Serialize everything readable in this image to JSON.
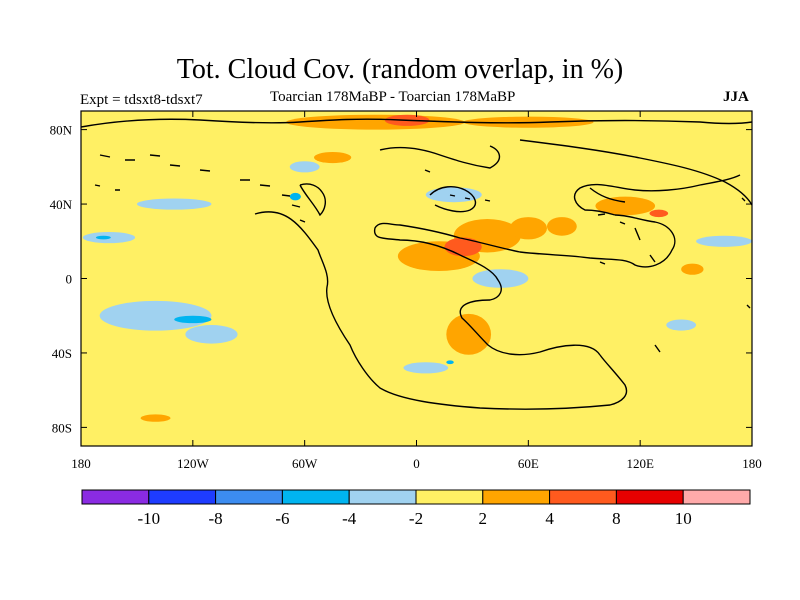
{
  "header": {
    "title": "Tot. Cloud Cov. (random overlap, in %)",
    "left_label": "Expt = tdsxt8-tdsxt7",
    "center_label": "Toarcian 178MaBP - Toarcian 178MaBP",
    "right_label": "JJA"
  },
  "chart_data": {
    "type": "heatmap",
    "title": "Tot. Cloud Cov. (random overlap, in %)",
    "variable": "Total cloud cover difference (random overlap)",
    "units": "%",
    "xlim": [
      -180,
      180
    ],
    "ylim": [
      -90,
      90
    ],
    "x_ticks": [
      {
        "value": -180,
        "label": "180"
      },
      {
        "value": -120,
        "label": "120W"
      },
      {
        "value": -60,
        "label": "60W"
      },
      {
        "value": 0,
        "label": "0"
      },
      {
        "value": 60,
        "label": "60E"
      },
      {
        "value": 120,
        "label": "120E"
      },
      {
        "value": 180,
        "label": "180"
      }
    ],
    "y_ticks": [
      {
        "value": 80,
        "label": "80N"
      },
      {
        "value": 40,
        "label": "40N"
      },
      {
        "value": 0,
        "label": "0"
      },
      {
        "value": -40,
        "label": "40S"
      },
      {
        "value": -80,
        "label": "80S"
      }
    ],
    "background_level": "-2 to 2",
    "colorbar": {
      "colors": [
        "#8a2be2",
        "#1e3cff",
        "#3c8cf0",
        "#00b4f0",
        "#a0d2f0",
        "#fff064",
        "#ffa500",
        "#ff5a1e",
        "#e60000",
        "#ffaaaa"
      ],
      "labels": [
        "-10",
        "-8",
        "-6",
        "-4",
        "-2",
        "2",
        "4",
        "8",
        "10"
      ]
    },
    "regions": [
      {
        "level": "2 to 4",
        "lon": 12,
        "lat": 12,
        "rlon": 22,
        "rlat": 8
      },
      {
        "level": "2 to 4",
        "lon": 38,
        "lat": 23,
        "rlon": 18,
        "rlat": 9
      },
      {
        "level": "2 to 4",
        "lon": 60,
        "lat": 27,
        "rlon": 10,
        "rlat": 6
      },
      {
        "level": "2 to 4",
        "lon": 78,
        "lat": 28,
        "rlon": 8,
        "rlat": 5
      },
      {
        "level": "2 to 4",
        "lon": 28,
        "lat": -30,
        "rlon": 12,
        "rlat": 11
      },
      {
        "level": "2 to 4",
        "lon": -22,
        "lat": 84,
        "rlon": 48,
        "rlat": 4
      },
      {
        "level": "2 to 4",
        "lon": 60,
        "lat": 84,
        "rlon": 35,
        "rlat": 3
      },
      {
        "level": "2 to 4",
        "lon": 112,
        "lat": 39,
        "rlon": 16,
        "rlat": 5
      },
      {
        "level": "2 to 4",
        "lon": -45,
        "lat": 65,
        "rlon": 10,
        "rlat": 3
      },
      {
        "level": "2 to 4",
        "lon": -140,
        "lat": -75,
        "rlon": 8,
        "rlat": 2
      },
      {
        "level": "2 to 4",
        "lon": 148,
        "lat": 5,
        "rlon": 6,
        "rlat": 3
      },
      {
        "level": "4 to 8",
        "lon": -5,
        "lat": 85,
        "rlon": 12,
        "rlat": 3
      },
      {
        "level": "4 to 8",
        "lon": 25,
        "lat": 17,
        "rlon": 10,
        "rlat": 5
      },
      {
        "level": "4 to 8",
        "lon": 130,
        "lat": 35,
        "rlon": 5,
        "rlat": 2
      },
      {
        "level": "-4 to -2",
        "lon": -130,
        "lat": 40,
        "rlon": 20,
        "rlat": 3
      },
      {
        "level": "-4 to -2",
        "lon": -165,
        "lat": 22,
        "rlon": 14,
        "rlat": 3
      },
      {
        "level": "-4 to -2",
        "lon": -140,
        "lat": -20,
        "rlon": 30,
        "rlat": 8
      },
      {
        "level": "-4 to -2",
        "lon": -110,
        "lat": -30,
        "rlon": 14,
        "rlat": 5
      },
      {
        "level": "-4 to -2",
        "lon": 45,
        "lat": 0,
        "rlon": 15,
        "rlat": 5
      },
      {
        "level": "-4 to -2",
        "lon": 20,
        "lat": 45,
        "rlon": 15,
        "rlat": 4
      },
      {
        "level": "-4 to -2",
        "lon": 5,
        "lat": -48,
        "rlon": 12,
        "rlat": 3
      },
      {
        "level": "-4 to -2",
        "lon": 165,
        "lat": 20,
        "rlon": 15,
        "rlat": 3
      },
      {
        "level": "-4 to -2",
        "lon": 142,
        "lat": -25,
        "rlon": 8,
        "rlat": 3
      },
      {
        "level": "-4 to -2",
        "lon": -60,
        "lat": 60,
        "rlon": 8,
        "rlat": 3
      },
      {
        "level": "-6 to -4",
        "lon": -168,
        "lat": 22,
        "rlon": 4,
        "rlat": 1
      },
      {
        "level": "-6 to -4",
        "lon": -120,
        "lat": -22,
        "rlon": 10,
        "rlat": 2
      },
      {
        "level": "-6 to -4",
        "lon": -65,
        "lat": 44,
        "rlon": 3,
        "rlat": 2
      },
      {
        "level": "-6 to -4",
        "lon": 18,
        "lat": -45,
        "rlon": 2,
        "rlat": 1
      }
    ]
  }
}
